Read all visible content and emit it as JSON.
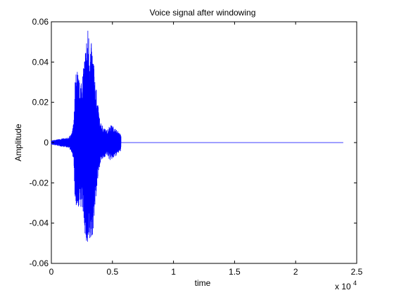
{
  "chart_data": {
    "type": "line",
    "title": "Voice signal after windowing",
    "xlabel": "time",
    "ylabel": "Amplitude",
    "xlim": [
      0,
      25000
    ],
    "ylim": [
      -0.06,
      0.06
    ],
    "x_exponent_label": "x 10",
    "x_exponent_power": "4",
    "x_ticks": [
      0,
      5000,
      10000,
      15000,
      20000,
      25000
    ],
    "x_tick_labels": [
      "0",
      "0.5",
      "1",
      "1.5",
      "2",
      "2.5"
    ],
    "y_ticks": [
      -0.06,
      -0.04,
      -0.02,
      0,
      0.02,
      0.04,
      0.06
    ],
    "y_tick_labels": [
      "-0.06",
      "-0.04",
      "-0.02",
      "0",
      "0.02",
      "0.04",
      "0.06"
    ],
    "grid": false,
    "series": [
      {
        "color": "#0000ff",
        "x_start": 0,
        "x_end": 23900,
        "envelope": [
          {
            "x": 0,
            "y": 0.001
          },
          {
            "x": 800,
            "y": 0.002
          },
          {
            "x": 1400,
            "y": 0.0025
          },
          {
            "x": 1700,
            "y": 0.005
          },
          {
            "x": 1850,
            "y": 0.012
          },
          {
            "x": 1950,
            "y": 0.032
          },
          {
            "x": 2100,
            "y": 0.038
          },
          {
            "x": 2300,
            "y": 0.03
          },
          {
            "x": 2600,
            "y": 0.036
          },
          {
            "x": 2850,
            "y": 0.052
          },
          {
            "x": 3000,
            "y": 0.058
          },
          {
            "x": 3150,
            "y": 0.052
          },
          {
            "x": 3350,
            "y": 0.048
          },
          {
            "x": 3550,
            "y": 0.035
          },
          {
            "x": 3750,
            "y": 0.022
          },
          {
            "x": 4000,
            "y": 0.01
          },
          {
            "x": 4300,
            "y": 0.008
          },
          {
            "x": 4500,
            "y": 0.006
          },
          {
            "x": 4800,
            "y": 0.009
          },
          {
            "x": 5100,
            "y": 0.008
          },
          {
            "x": 5400,
            "y": 0.006
          },
          {
            "x": 5700,
            "y": 0.004
          },
          {
            "x": 5701,
            "y": 0
          },
          {
            "x": 23900,
            "y": 0
          }
        ]
      }
    ]
  }
}
